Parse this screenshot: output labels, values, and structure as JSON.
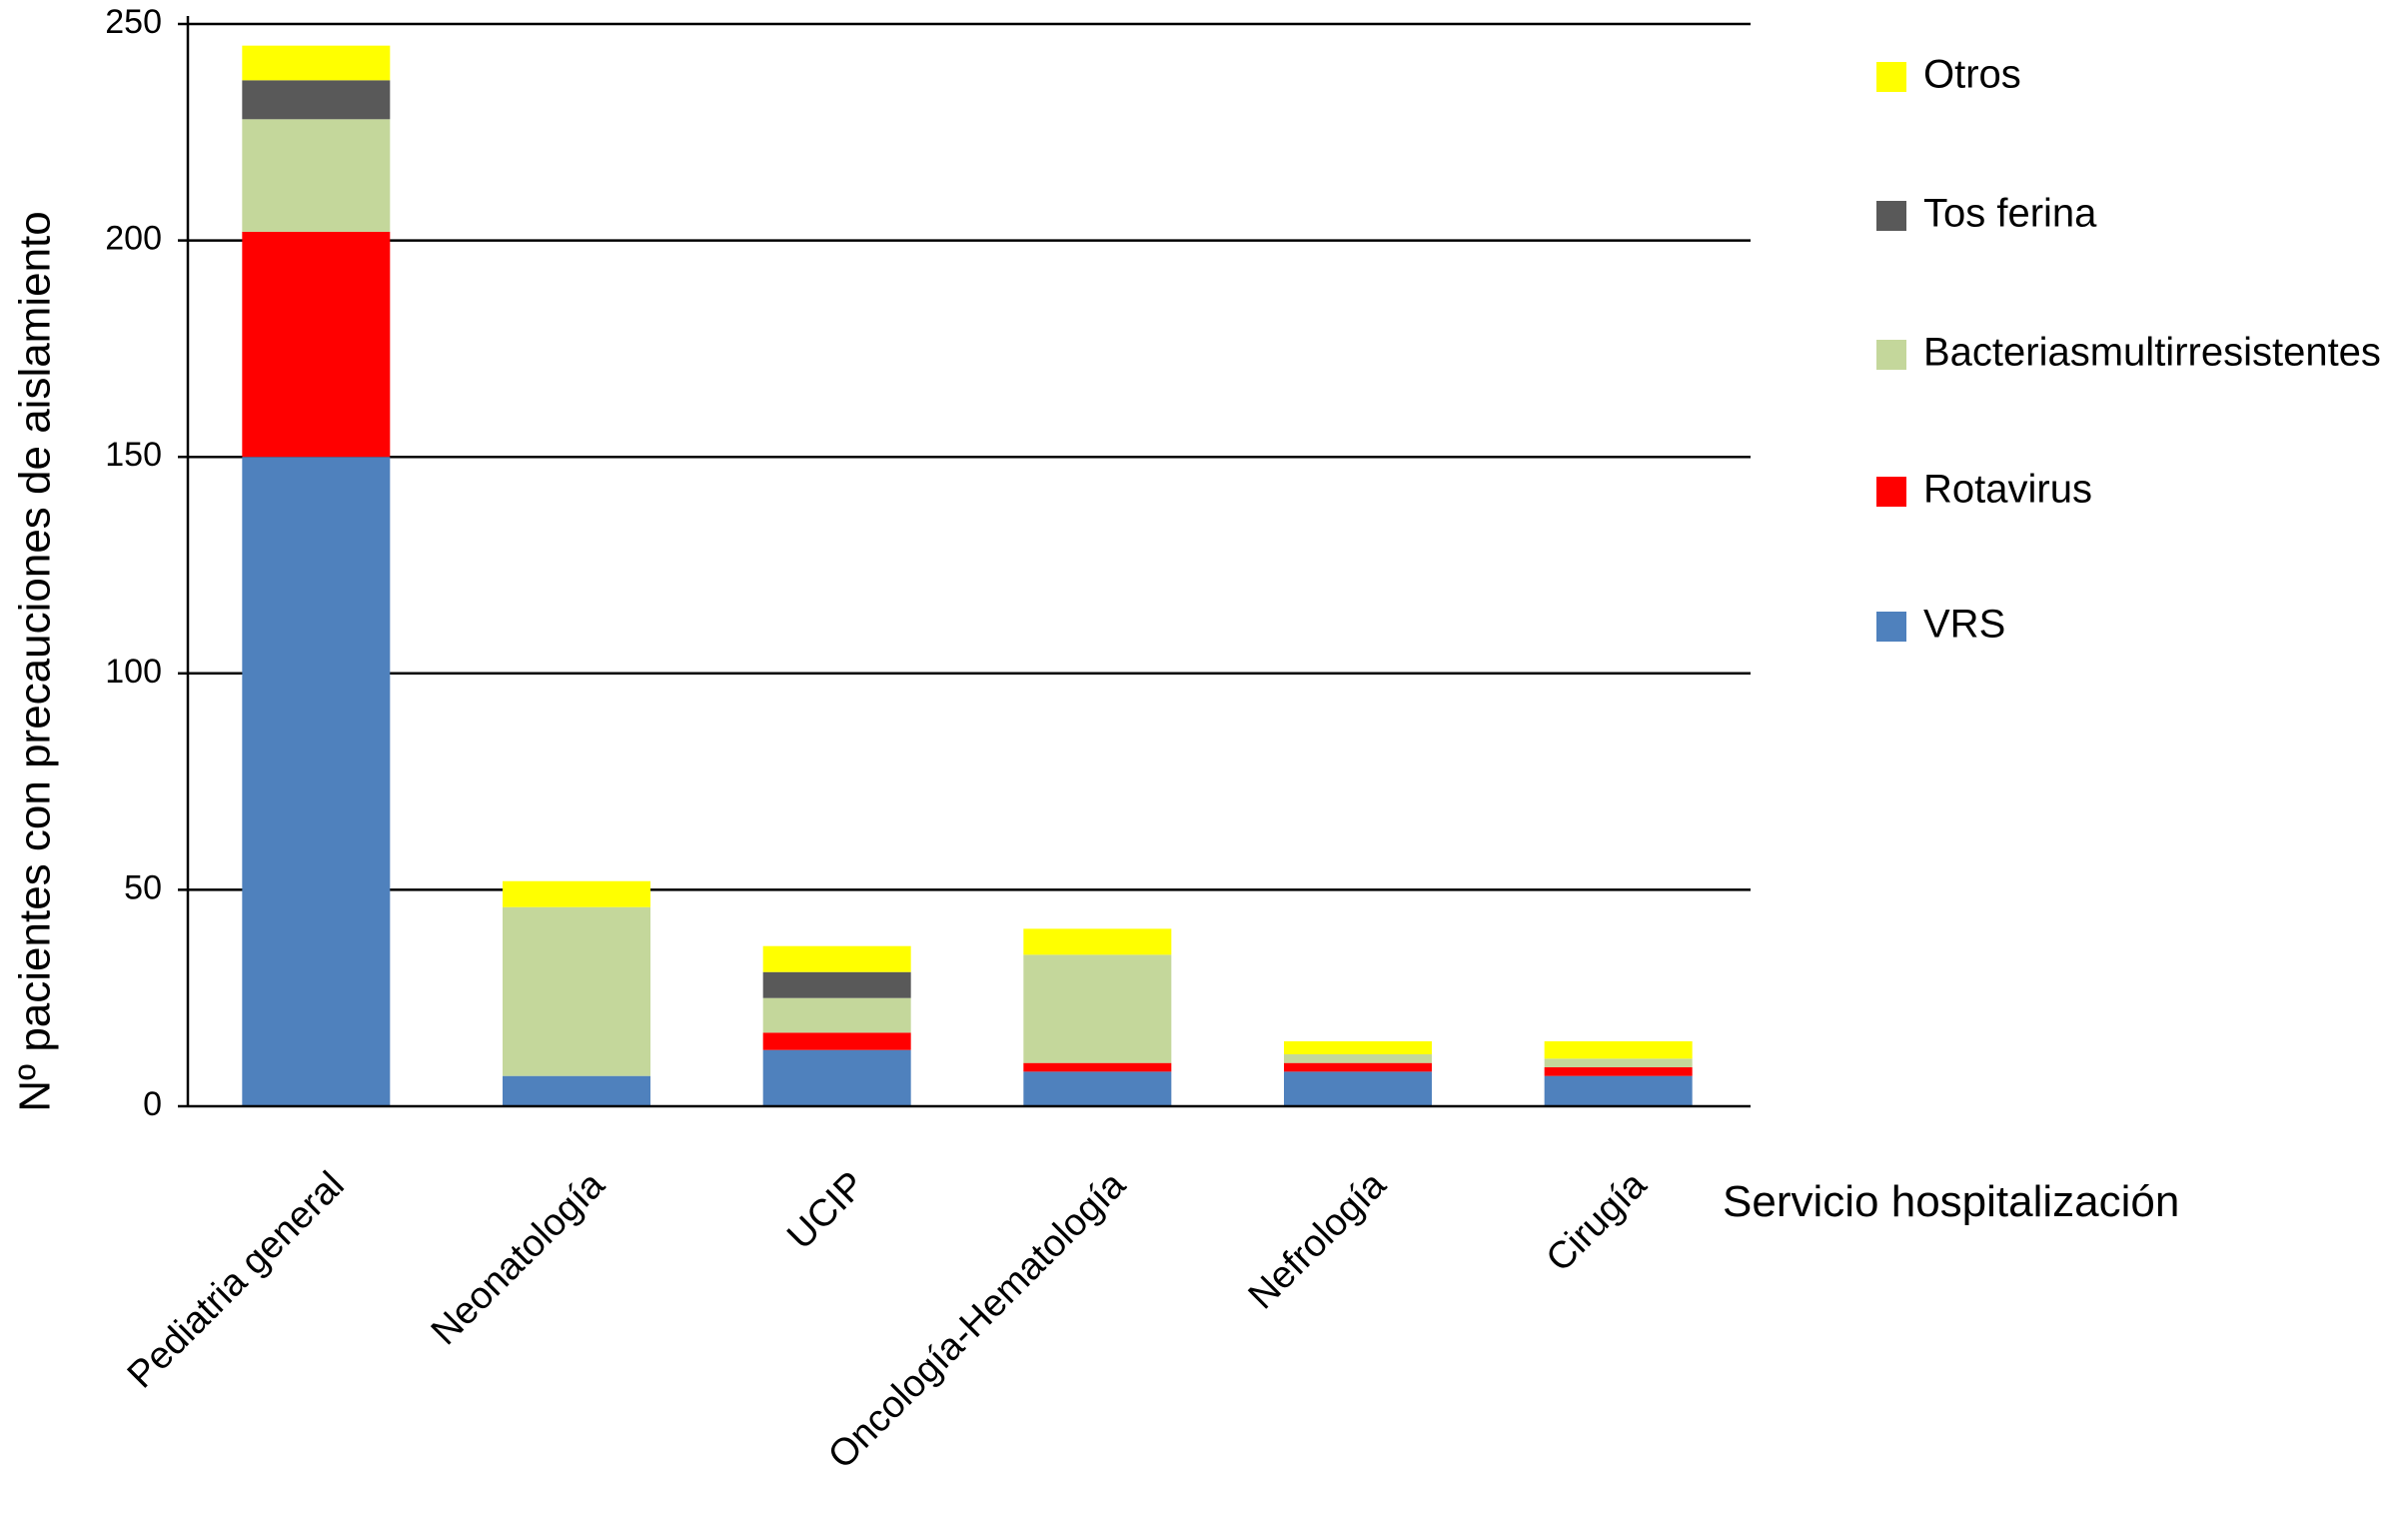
{
  "chart_data": {
    "type": "bar",
    "stacked": true,
    "title": "",
    "ylabel": "Nº pacientes con precauciones de aislamiento",
    "xlabel": "Servicio hospitalización",
    "ylim": [
      0,
      250
    ],
    "yticks": [
      0,
      50,
      100,
      150,
      200,
      250
    ],
    "grid": true,
    "legend_position": "right",
    "categories": [
      "Pediatria general",
      "Neonatología",
      "UCIP",
      "Oncología-Hematología",
      "Nefrología",
      "Cirugía"
    ],
    "series": [
      {
        "name": "VRS",
        "color": "#4f81bd",
        "values": [
          150,
          7,
          13,
          8,
          8,
          7
        ]
      },
      {
        "name": "Rotavirus",
        "color": "#ff0000",
        "values": [
          52,
          0,
          4,
          2,
          2,
          2
        ]
      },
      {
        "name": "Bacteriasmultirresistentes",
        "color": "#c4d79b",
        "values": [
          26,
          39,
          8,
          25,
          2,
          2
        ]
      },
      {
        "name": "Tos ferina",
        "color": "#595959",
        "values": [
          9,
          0,
          6,
          0,
          0,
          0
        ]
      },
      {
        "name": "Otros",
        "color": "#ffff00",
        "values": [
          8,
          6,
          6,
          6,
          3,
          4
        ]
      }
    ]
  }
}
